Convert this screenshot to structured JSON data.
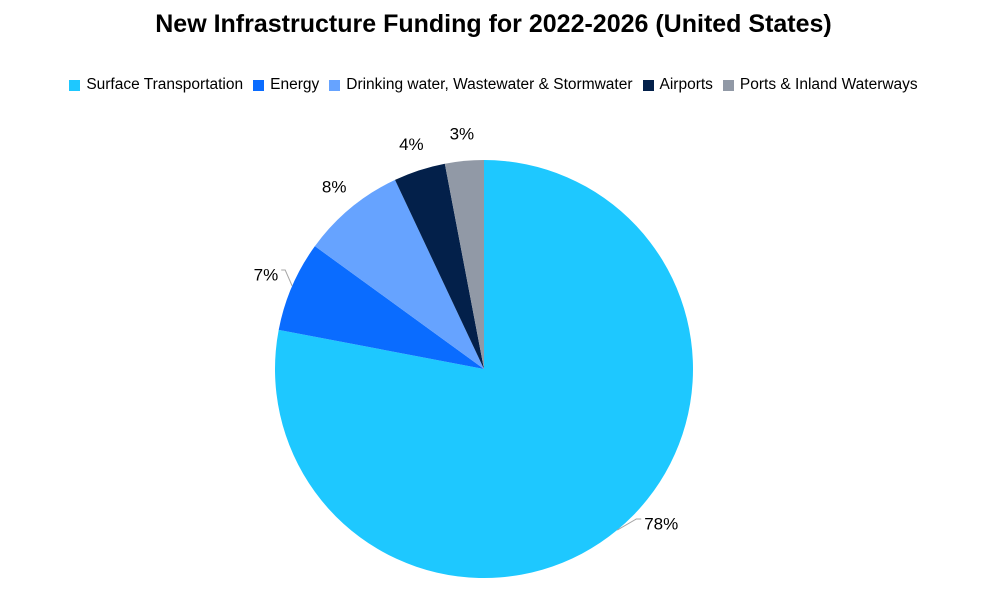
{
  "chart_data": {
    "type": "pie",
    "title": "New Infrastructure Funding for 2022-2026 (United States)",
    "legend_position": "top",
    "start_angle": "12 o'clock",
    "direction": "clockwise",
    "slices": [
      {
        "label": "Surface Transportation",
        "value": 78,
        "display": "78%",
        "color": "#1ec8ff"
      },
      {
        "label": "Energy",
        "value": 7,
        "display": "7%",
        "color": "#0a6cff"
      },
      {
        "label": "Drinking water, Wastewater & Stormwater",
        "value": 8,
        "display": "8%",
        "color": "#66a3ff"
      },
      {
        "label": "Airports",
        "value": 4,
        "display": "4%",
        "color": "#03204a"
      },
      {
        "label": "Ports & Inland Waterways",
        "value": 3,
        "display": "3%",
        "color": "#9199a6"
      }
    ]
  }
}
